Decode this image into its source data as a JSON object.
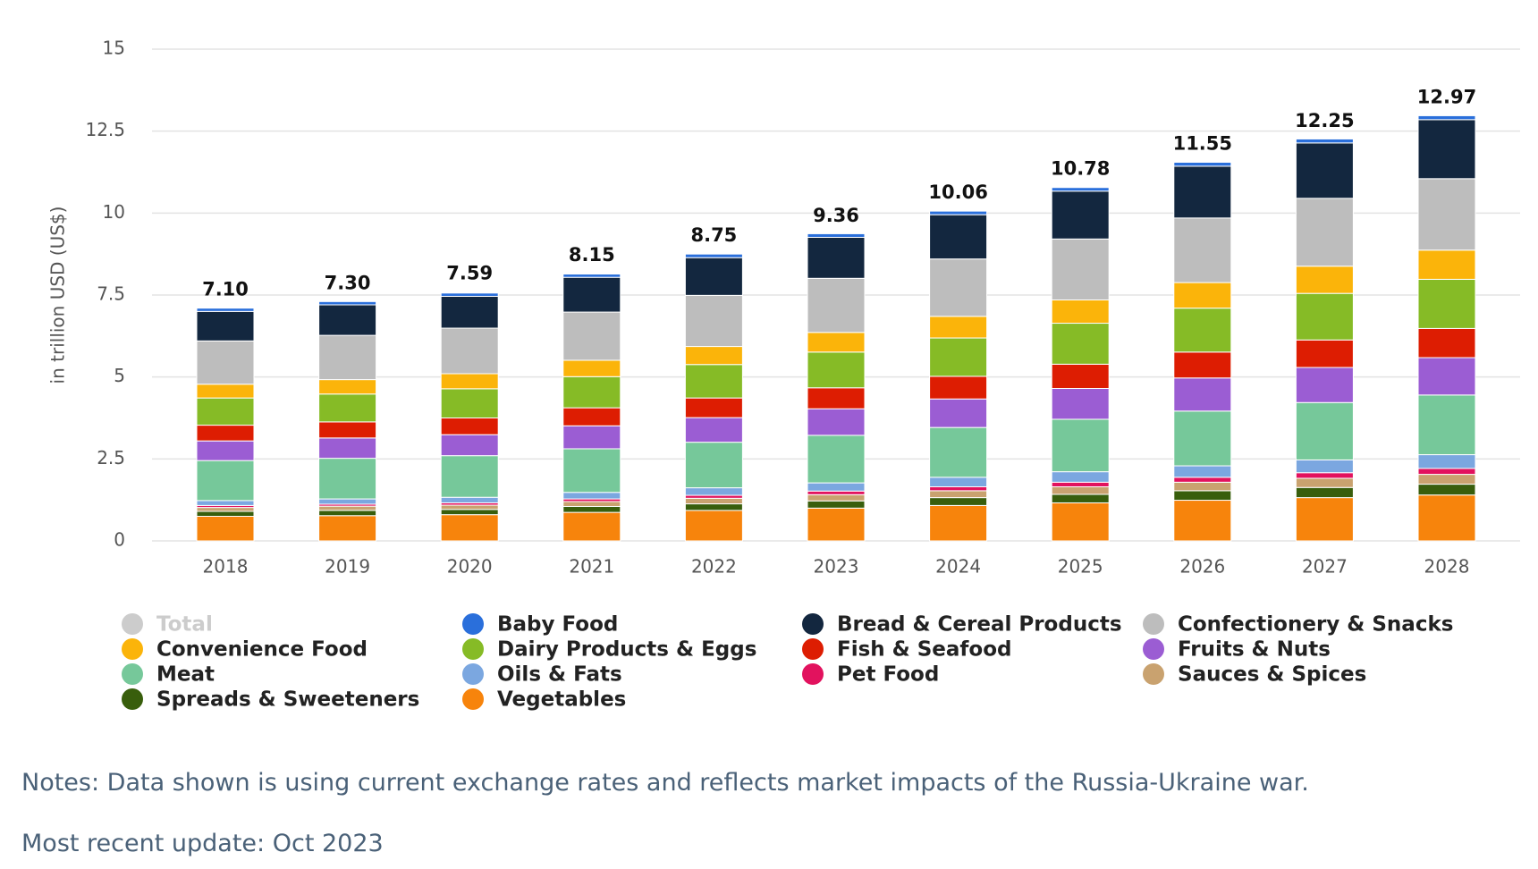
{
  "chart_data": {
    "type": "bar",
    "stacked": true,
    "y_label": "in trillion USD (US$)",
    "categories": [
      "2018",
      "2019",
      "2020",
      "2021",
      "2022",
      "2023",
      "2024",
      "2025",
      "2026",
      "2027",
      "2028"
    ],
    "ylim": [
      0,
      15
    ],
    "yticks": [
      0,
      2.5,
      5,
      7.5,
      10,
      12.5,
      15
    ],
    "grid": true,
    "series": [
      {
        "name": "Total",
        "color": "#c8c8c8",
        "hidden": true,
        "values": [
          7.1,
          7.3,
          7.59,
          8.15,
          8.75,
          9.36,
          10.06,
          10.78,
          11.55,
          12.25,
          12.97
        ],
        "value_labels": [
          "7.10",
          "7.30",
          "7.59",
          "8.15",
          "8.75",
          "9.36",
          "10.06",
          "10.78",
          "11.55",
          "12.25",
          "12.97"
        ]
      },
      {
        "name": "Baby Food",
        "color": "#2a6fdb",
        "values": [
          0.1,
          0.1,
          0.1,
          0.1,
          0.11,
          0.11,
          0.11,
          0.11,
          0.12,
          0.12,
          0.12
        ]
      },
      {
        "name": "Bread & Cereal Products",
        "color": "#13273f",
        "values": [
          0.9,
          0.93,
          0.97,
          1.06,
          1.15,
          1.25,
          1.35,
          1.46,
          1.58,
          1.69,
          1.8
        ]
      },
      {
        "name": "Confectionery & Snacks",
        "color": "#bdbdbd",
        "values": [
          1.32,
          1.35,
          1.39,
          1.47,
          1.56,
          1.65,
          1.75,
          1.86,
          1.97,
          2.07,
          2.18
        ]
      },
      {
        "name": "Convenience Food",
        "color": "#fbb40a",
        "values": [
          0.42,
          0.44,
          0.46,
          0.5,
          0.55,
          0.6,
          0.66,
          0.71,
          0.78,
          0.83,
          0.89
        ]
      },
      {
        "name": "Dairy Products & Eggs",
        "color": "#86bb26",
        "values": [
          0.83,
          0.85,
          0.89,
          0.95,
          1.02,
          1.09,
          1.17,
          1.25,
          1.34,
          1.42,
          1.5
        ]
      },
      {
        "name": "Fish & Seafood",
        "color": "#dd1d02",
        "values": [
          0.48,
          0.49,
          0.51,
          0.55,
          0.6,
          0.64,
          0.69,
          0.74,
          0.79,
          0.84,
          0.89
        ]
      },
      {
        "name": "Fruits & Nuts",
        "color": "#9b5dd3",
        "values": [
          0.6,
          0.62,
          0.64,
          0.7,
          0.75,
          0.81,
          0.87,
          0.94,
          1.01,
          1.07,
          1.14
        ]
      },
      {
        "name": "Meat",
        "color": "#76c89a",
        "values": [
          1.22,
          1.24,
          1.27,
          1.33,
          1.39,
          1.45,
          1.52,
          1.6,
          1.67,
          1.75,
          1.82
        ]
      },
      {
        "name": "Oils & Fats",
        "color": "#7ba7e0",
        "values": [
          0.15,
          0.16,
          0.17,
          0.2,
          0.23,
          0.25,
          0.29,
          0.32,
          0.35,
          0.39,
          0.42
        ]
      },
      {
        "name": "Pet Food",
        "color": "#e2125e",
        "values": [
          0.06,
          0.06,
          0.07,
          0.08,
          0.09,
          0.11,
          0.12,
          0.14,
          0.15,
          0.17,
          0.18
        ]
      },
      {
        "name": "Sauces & Spices",
        "color": "#c9a26f",
        "values": [
          0.12,
          0.13,
          0.13,
          0.15,
          0.17,
          0.19,
          0.21,
          0.23,
          0.26,
          0.28,
          0.3
        ]
      },
      {
        "name": "Spreads & Sweeteners",
        "color": "#385e0c",
        "values": [
          0.15,
          0.16,
          0.16,
          0.18,
          0.2,
          0.22,
          0.24,
          0.26,
          0.29,
          0.31,
          0.33
        ]
      },
      {
        "name": "Vegetables",
        "color": "#f7840c",
        "values": [
          0.75,
          0.77,
          0.8,
          0.87,
          0.93,
          1.0,
          1.08,
          1.16,
          1.24,
          1.32,
          1.4
        ]
      }
    ]
  },
  "notes": "Notes: Data shown is using current exchange rates and reflects market impacts of the Russia-Ukraine war.",
  "update": "Most recent update: Oct 2023"
}
